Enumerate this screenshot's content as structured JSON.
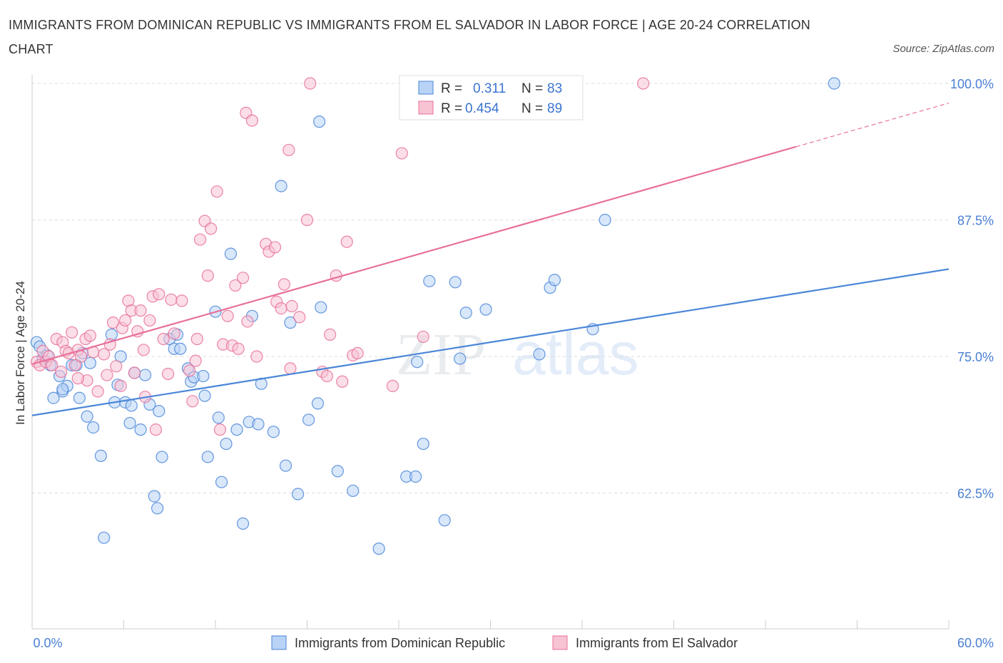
{
  "title": "IMMIGRANTS FROM DOMINICAN REPUBLIC VS IMMIGRANTS FROM EL SALVADOR IN LABOR FORCE | AGE 20-24 CORRELATION CHART",
  "source": "Source: ZipAtlas.com",
  "watermark": {
    "zip": "ZIP",
    "atlas": "atlas"
  },
  "colors": {
    "blue": "#4a86d8",
    "blue_fill": "#b8d3f5",
    "pink": "#e8709a",
    "pink_fill": "#f8c3d3",
    "axis_text": "#4a7fd4",
    "grid": "#dddddd"
  },
  "legend": [
    {
      "r_label": "R =",
      "r_value": "0.311",
      "n_label": "N =",
      "n_value": "83"
    },
    {
      "r_label": "R =",
      "r_value": "0.454",
      "n_label": "N =",
      "n_value": "89"
    }
  ],
  "chart_data": {
    "type": "scatter",
    "xlabel": "",
    "ylabel": "In Labor Force | Age 20-24",
    "xlim": [
      0,
      60
    ],
    "ylim": [
      50,
      100
    ],
    "x_tick_labels": [
      "0.0%",
      "60.0%"
    ],
    "y_ticks": [
      62.5,
      75.0,
      87.5,
      100.0
    ],
    "y_tick_labels": [
      "62.5%",
      "75.0%",
      "87.5%",
      "100.0%"
    ],
    "grid": true,
    "series": [
      {
        "name": "Immigrants from Dominican Republic",
        "color": "#4a86d8",
        "trend": {
          "x": [
            0,
            60
          ],
          "y": [
            69.6,
            83.0
          ]
        },
        "points": [
          [
            0.3,
            76.3
          ],
          [
            0.5,
            75.9
          ],
          [
            0.7,
            74.8
          ],
          [
            1.0,
            75.1
          ],
          [
            1.2,
            74.2
          ],
          [
            1.4,
            71.2
          ],
          [
            1.8,
            73.2
          ],
          [
            2.0,
            71.8
          ],
          [
            2.3,
            72.3
          ],
          [
            2.6,
            74.2
          ],
          [
            2.9,
            74.2
          ],
          [
            3.1,
            71.2
          ],
          [
            3.3,
            75.3
          ],
          [
            3.6,
            69.5
          ],
          [
            3.8,
            74.4
          ],
          [
            4.0,
            68.5
          ],
          [
            4.5,
            65.9
          ],
          [
            4.7,
            58.4
          ],
          [
            5.2,
            77.0
          ],
          [
            5.4,
            70.8
          ],
          [
            5.8,
            75.0
          ],
          [
            6.1,
            70.8
          ],
          [
            6.4,
            68.9
          ],
          [
            6.5,
            70.5
          ],
          [
            6.7,
            73.5
          ],
          [
            7.1,
            68.3
          ],
          [
            7.4,
            73.3
          ],
          [
            7.7,
            70.6
          ],
          [
            8.3,
            70.0
          ],
          [
            8.5,
            65.8
          ],
          [
            8.2,
            61.1
          ],
          [
            8.0,
            62.2
          ],
          [
            9.0,
            76.6
          ],
          [
            9.3,
            75.7
          ],
          [
            9.5,
            77.0
          ],
          [
            9.7,
            75.7
          ],
          [
            10.2,
            73.9
          ],
          [
            10.4,
            72.7
          ],
          [
            10.6,
            73.1
          ],
          [
            11.2,
            73.2
          ],
          [
            11.3,
            71.4
          ],
          [
            11.5,
            65.8
          ],
          [
            12.0,
            79.1
          ],
          [
            12.2,
            69.4
          ],
          [
            12.4,
            63.5
          ],
          [
            12.7,
            67.0
          ],
          [
            13.0,
            84.4
          ],
          [
            13.4,
            68.3
          ],
          [
            13.8,
            59.7
          ],
          [
            14.2,
            69.0
          ],
          [
            14.4,
            78.7
          ],
          [
            14.8,
            68.8
          ],
          [
            15.0,
            72.5
          ],
          [
            15.8,
            68.1
          ],
          [
            16.3,
            90.6
          ],
          [
            16.6,
            65.0
          ],
          [
            16.9,
            78.1
          ],
          [
            17.4,
            62.4
          ],
          [
            18.1,
            69.2
          ],
          [
            18.7,
            70.7
          ],
          [
            18.8,
            96.5
          ],
          [
            18.9,
            79.5
          ],
          [
            20.0,
            64.5
          ],
          [
            21.0,
            62.7
          ],
          [
            22.7,
            57.4
          ],
          [
            24.5,
            64.0
          ],
          [
            25.1,
            64.0
          ],
          [
            25.2,
            74.5
          ],
          [
            25.6,
            67.0
          ],
          [
            26.0,
            81.9
          ],
          [
            27.0,
            60.0
          ],
          [
            27.7,
            81.8
          ],
          [
            28.0,
            74.8
          ],
          [
            28.4,
            79.0
          ],
          [
            29.7,
            79.3
          ],
          [
            33.2,
            75.2
          ],
          [
            33.9,
            81.3
          ],
          [
            34.2,
            82.0
          ],
          [
            36.7,
            77.5
          ],
          [
            37.5,
            87.5
          ],
          [
            52.5,
            100.0
          ],
          [
            2.0,
            72.0
          ],
          [
            5.6,
            72.4
          ]
        ]
      },
      {
        "name": "Immigrants from El Salvador",
        "color": "#e8709a",
        "trend": {
          "x": [
            0,
            50
          ],
          "y": [
            74.3,
            94.2
          ]
        },
        "trend_dashed": {
          "x": [
            50,
            60
          ],
          "y": [
            94.2,
            98.2
          ]
        },
        "points": [
          [
            0.3,
            74.5
          ],
          [
            0.5,
            74.2
          ],
          [
            0.7,
            75.5
          ],
          [
            0.9,
            74.5
          ],
          [
            1.1,
            75.0
          ],
          [
            1.3,
            74.2
          ],
          [
            1.6,
            76.6
          ],
          [
            1.9,
            73.6
          ],
          [
            2.0,
            76.3
          ],
          [
            2.2,
            75.5
          ],
          [
            2.4,
            75.3
          ],
          [
            2.6,
            77.2
          ],
          [
            2.8,
            74.2
          ],
          [
            3.0,
            75.6
          ],
          [
            3.2,
            75.0
          ],
          [
            3.5,
            76.6
          ],
          [
            3.6,
            72.8
          ],
          [
            3.8,
            76.9
          ],
          [
            4.0,
            75.4
          ],
          [
            4.3,
            71.8
          ],
          [
            4.7,
            75.2
          ],
          [
            4.9,
            73.3
          ],
          [
            5.1,
            76.1
          ],
          [
            5.3,
            78.1
          ],
          [
            5.5,
            74.1
          ],
          [
            5.8,
            72.3
          ],
          [
            5.9,
            77.6
          ],
          [
            6.1,
            78.3
          ],
          [
            6.3,
            80.1
          ],
          [
            6.5,
            79.2
          ],
          [
            6.9,
            77.3
          ],
          [
            7.1,
            79.2
          ],
          [
            7.3,
            75.6
          ],
          [
            7.4,
            71.3
          ],
          [
            7.7,
            78.3
          ],
          [
            7.9,
            80.5
          ],
          [
            8.1,
            68.3
          ],
          [
            8.3,
            80.7
          ],
          [
            8.6,
            76.6
          ],
          [
            8.9,
            73.4
          ],
          [
            9.1,
            80.2
          ],
          [
            9.3,
            77.1
          ],
          [
            9.8,
            80.1
          ],
          [
            10.3,
            73.7
          ],
          [
            10.5,
            70.9
          ],
          [
            10.7,
            74.6
          ],
          [
            10.8,
            76.6
          ],
          [
            11.0,
            85.7
          ],
          [
            11.3,
            87.4
          ],
          [
            11.5,
            82.4
          ],
          [
            11.7,
            86.7
          ],
          [
            12.1,
            90.1
          ],
          [
            12.3,
            68.3
          ],
          [
            12.5,
            76.1
          ],
          [
            12.8,
            78.7
          ],
          [
            13.1,
            76.0
          ],
          [
            13.3,
            81.5
          ],
          [
            13.5,
            75.7
          ],
          [
            13.8,
            82.2
          ],
          [
            14.0,
            97.3
          ],
          [
            14.1,
            78.2
          ],
          [
            14.4,
            96.6
          ],
          [
            14.7,
            75.0
          ],
          [
            15.3,
            85.3
          ],
          [
            15.5,
            84.6
          ],
          [
            15.9,
            85.0
          ],
          [
            16.0,
            80.0
          ],
          [
            16.3,
            79.4
          ],
          [
            16.5,
            81.6
          ],
          [
            16.8,
            93.9
          ],
          [
            16.9,
            73.9
          ],
          [
            17.0,
            79.6
          ],
          [
            17.5,
            78.6
          ],
          [
            18.0,
            87.5
          ],
          [
            18.2,
            100.0
          ],
          [
            19.0,
            73.6
          ],
          [
            19.3,
            73.2
          ],
          [
            19.5,
            77.0
          ],
          [
            19.9,
            82.4
          ],
          [
            20.3,
            72.7
          ],
          [
            20.6,
            85.5
          ],
          [
            21.0,
            75.1
          ],
          [
            21.3,
            75.3
          ],
          [
            23.6,
            72.3
          ],
          [
            24.2,
            93.6
          ],
          [
            25.6,
            76.8
          ],
          [
            40.0,
            100.0
          ],
          [
            3.0,
            73.0
          ],
          [
            6.7,
            73.5
          ]
        ]
      }
    ]
  },
  "bottom_legend": [
    {
      "label": "Immigrants from Dominican Republic"
    },
    {
      "label": "Immigrants from El Salvador"
    }
  ]
}
